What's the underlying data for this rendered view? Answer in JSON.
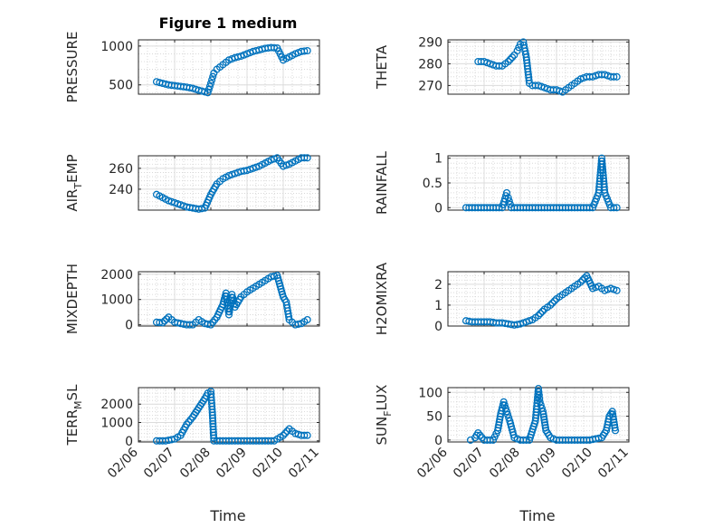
{
  "figure": {
    "title": "Figure 1 medium",
    "marker_color": "#0072BD",
    "time_ticks": [
      "02/06",
      "02/07",
      "02/08",
      "02/09",
      "02/10",
      "02/11"
    ],
    "xlabel": "Time"
  },
  "chart_data": [
    {
      "type": "scatter",
      "ylabel": "PRESSURE",
      "ylim": [
        380,
        1080
      ],
      "yticks": [
        500,
        1000
      ],
      "ytick_labels": [
        "500",
        "1000"
      ],
      "xlim": [
        "02/06",
        "02/11"
      ],
      "grid": true,
      "series": [
        {
          "marker": "o-open",
          "x": [
            "02/06 12:00",
            "02/06 16:00",
            "02/06 20:00",
            "02/07 00:00",
            "02/07 04:00",
            "02/07 08:00",
            "02/07 12:00",
            "02/07 16:00",
            "02/07 20:00",
            "02/07 22:00",
            "02/08 00:00",
            "02/08 02:00",
            "02/08 04:00",
            "02/08 08:00",
            "02/08 12:00",
            "02/08 16:00",
            "02/08 20:00",
            "02/09 00:00",
            "02/09 04:00",
            "02/09 08:00",
            "02/09 12:00",
            "02/09 16:00",
            "02/09 20:00",
            "02/10 00:00",
            "02/10 04:00",
            "02/10 08:00",
            "02/10 12:00",
            "02/10 16:00"
          ],
          "y": [
            540,
            520,
            500,
            490,
            480,
            470,
            455,
            430,
            410,
            400,
            520,
            650,
            700,
            760,
            820,
            850,
            870,
            900,
            930,
            950,
            970,
            980,
            975,
            820,
            860,
            900,
            930,
            940
          ]
        }
      ]
    },
    {
      "type": "scatter",
      "ylabel": "THETA",
      "ylim": [
        266,
        291
      ],
      "yticks": [
        270,
        280,
        290
      ],
      "ytick_labels": [
        "270",
        "280",
        "290"
      ],
      "xlim": [
        "02/06",
        "02/11"
      ],
      "grid": true,
      "series": [
        {
          "marker": "o-open",
          "x": [
            "02/06 20:00",
            "02/07 00:00",
            "02/07 04:00",
            "02/07 08:00",
            "02/07 12:00",
            "02/07 16:00",
            "02/07 20:00",
            "02/07 22:00",
            "02/08 00:00",
            "02/08 02:00",
            "02/08 04:00",
            "02/08 06:00",
            "02/08 08:00",
            "02/08 12:00",
            "02/08 16:00",
            "02/08 20:00",
            "02/09 00:00",
            "02/09 04:00",
            "02/09 08:00",
            "02/09 12:00",
            "02/09 16:00",
            "02/09 20:00",
            "02/10 00:00",
            "02/10 04:00",
            "02/10 08:00",
            "02/10 12:00",
            "02/10 16:00"
          ],
          "y": [
            281,
            281,
            280,
            279,
            279,
            281,
            284,
            286,
            289,
            290,
            283,
            271,
            270,
            270,
            269,
            268,
            268,
            267,
            269,
            271,
            273,
            274,
            274,
            275,
            275,
            274,
            274
          ]
        }
      ]
    },
    {
      "type": "scatter",
      "ylabel": "AIR_TEMP",
      "ylim": [
        220,
        272
      ],
      "yticks": [
        240,
        260
      ],
      "ytick_labels": [
        "240",
        "260"
      ],
      "xlim": [
        "02/06",
        "02/11"
      ],
      "grid": true,
      "series": [
        {
          "marker": "o-open",
          "x": [
            "02/06 12:00",
            "02/06 16:00",
            "02/06 20:00",
            "02/07 00:00",
            "02/07 04:00",
            "02/07 08:00",
            "02/07 12:00",
            "02/07 16:00",
            "02/07 20:00",
            "02/08 00:00",
            "02/08 04:00",
            "02/08 08:00",
            "02/08 12:00",
            "02/08 16:00",
            "02/08 20:00",
            "02/09 00:00",
            "02/09 04:00",
            "02/09 08:00",
            "02/09 12:00",
            "02/09 16:00",
            "02/09 20:00",
            "02/10 00:00",
            "02/10 04:00",
            "02/10 08:00",
            "02/10 12:00",
            "02/10 16:00"
          ],
          "y": [
            235,
            232,
            229,
            227,
            225,
            223,
            222,
            221,
            222,
            235,
            245,
            250,
            253,
            255,
            257,
            258,
            260,
            262,
            265,
            268,
            270,
            262,
            264,
            267,
            270,
            270
          ]
        }
      ]
    },
    {
      "type": "scatter",
      "ylabel": "RAINFALL",
      "ylim": [
        -0.05,
        1.05
      ],
      "yticks": [
        0,
        0.5,
        1
      ],
      "ytick_labels": [
        "0",
        "0.5",
        "1"
      ],
      "xlim": [
        "02/06",
        "02/11"
      ],
      "grid": true,
      "series": [
        {
          "marker": "o-open",
          "x": [
            "02/06 12:00",
            "02/06 18:00",
            "02/07 00:00",
            "02/07 06:00",
            "02/07 12:00",
            "02/07 15:00",
            "02/07 16:00",
            "02/07 18:00",
            "02/08 00:00",
            "02/08 06:00",
            "02/08 12:00",
            "02/08 18:00",
            "02/09 00:00",
            "02/09 06:00",
            "02/09 12:00",
            "02/09 18:00",
            "02/10 00:00",
            "02/10 04:00",
            "02/10 06:00",
            "02/10 08:00",
            "02/10 12:00",
            "02/10 16:00"
          ],
          "y": [
            0,
            0,
            0,
            0,
            0,
            0.3,
            0.2,
            0,
            0,
            0,
            0,
            0,
            0,
            0,
            0,
            0,
            0,
            0.3,
            1.0,
            0.3,
            0,
            0
          ]
        }
      ]
    },
    {
      "type": "scatter",
      "ylabel": "MIXDEPTH",
      "ylim": [
        -50,
        2100
      ],
      "yticks": [
        0,
        1000,
        2000
      ],
      "ytick_labels": [
        "0",
        "1000",
        "2000"
      ],
      "xlim": [
        "02/06",
        "02/11"
      ],
      "grid": true,
      "series": [
        {
          "marker": "o-open",
          "x": [
            "02/06 12:00",
            "02/06 16:00",
            "02/06 20:00",
            "02/07 00:00",
            "02/07 04:00",
            "02/07 08:00",
            "02/07 12:00",
            "02/07 16:00",
            "02/07 20:00",
            "02/08 00:00",
            "02/08 04:00",
            "02/08 08:00",
            "02/08 10:00",
            "02/08 12:00",
            "02/08 14:00",
            "02/08 16:00",
            "02/08 18:00",
            "02/08 20:00",
            "02/09 00:00",
            "02/09 04:00",
            "02/09 08:00",
            "02/09 12:00",
            "02/09 16:00",
            "02/09 20:00",
            "02/10 00:00",
            "02/10 02:00",
            "02/10 04:00",
            "02/10 08:00",
            "02/10 12:00",
            "02/10 16:00"
          ],
          "y": [
            100,
            80,
            300,
            100,
            50,
            0,
            0,
            200,
            50,
            0,
            300,
            800,
            1250,
            400,
            1200,
            700,
            900,
            1100,
            1300,
            1450,
            1600,
            1750,
            1900,
            1950,
            1100,
            900,
            200,
            0,
            50,
            200
          ]
        }
      ]
    },
    {
      "type": "scatter",
      "ylabel": "H2OMIXRA",
      "ylim": [
        0,
        2.6
      ],
      "yticks": [
        0,
        1,
        2
      ],
      "ytick_labels": [
        "0",
        "1",
        "2"
      ],
      "xlim": [
        "02/06",
        "02/11"
      ],
      "grid": true,
      "series": [
        {
          "marker": "o-open",
          "x": [
            "02/06 12:00",
            "02/06 16:00",
            "02/06 20:00",
            "02/07 00:00",
            "02/07 04:00",
            "02/07 08:00",
            "02/07 12:00",
            "02/07 16:00",
            "02/07 20:00",
            "02/08 00:00",
            "02/08 04:00",
            "02/08 08:00",
            "02/08 12:00",
            "02/08 16:00",
            "02/08 20:00",
            "02/09 00:00",
            "02/09 04:00",
            "02/09 08:00",
            "02/09 12:00",
            "02/09 16:00",
            "02/09 20:00",
            "02/10 00:00",
            "02/10 04:00",
            "02/10 08:00",
            "02/10 12:00",
            "02/10 16:00"
          ],
          "y": [
            0.25,
            0.2,
            0.2,
            0.2,
            0.2,
            0.15,
            0.15,
            0.1,
            0.05,
            0.1,
            0.2,
            0.3,
            0.5,
            0.8,
            1.0,
            1.3,
            1.5,
            1.7,
            1.9,
            2.1,
            2.4,
            1.8,
            1.9,
            1.7,
            1.8,
            1.7
          ]
        }
      ]
    },
    {
      "type": "scatter",
      "ylabel": "TERR_MSL",
      "ylim": [
        -60,
        2900
      ],
      "yticks": [
        0,
        1000,
        2000
      ],
      "ytick_labels": [
        "0",
        "1000",
        "2000"
      ],
      "xlim": [
        "02/06",
        "02/11"
      ],
      "grid": true,
      "series": [
        {
          "marker": "o-open",
          "x": [
            "02/06 12:00",
            "02/06 18:00",
            "02/07 00:00",
            "02/07 04:00",
            "02/07 08:00",
            "02/07 12:00",
            "02/07 16:00",
            "02/07 20:00",
            "02/07 22:00",
            "02/08 00:00",
            "02/08 01:00",
            "02/08 02:00",
            "02/08 06:00",
            "02/08 12:00",
            "02/08 18:00",
            "02/09 00:00",
            "02/09 06:00",
            "02/09 12:00",
            "02/09 18:00",
            "02/10 00:00",
            "02/10 04:00",
            "02/10 08:00",
            "02/10 12:00",
            "02/10 16:00"
          ],
          "y": [
            0,
            0,
            100,
            300,
            900,
            1300,
            1800,
            2300,
            2600,
            2700,
            1550,
            0,
            0,
            0,
            0,
            0,
            0,
            0,
            0,
            300,
            650,
            400,
            300,
            300
          ]
        }
      ]
    },
    {
      "type": "scatter",
      "ylabel": "SUN_FLUX",
      "ylim": [
        -4,
        110
      ],
      "yticks": [
        0,
        50,
        100
      ],
      "ytick_labels": [
        "0",
        "50",
        "100"
      ],
      "xlim": [
        "02/06",
        "02/11"
      ],
      "grid": true,
      "series": [
        {
          "marker": "o-open",
          "x": [
            "02/06 15:00",
            "02/06 18:00",
            "02/06 20:00",
            "02/07 00:00",
            "02/07 06:00",
            "02/07 09:00",
            "02/07 11:00",
            "02/07 13:00",
            "02/07 15:00",
            "02/07 17:00",
            "02/07 20:00",
            "02/08 00:00",
            "02/08 06:00",
            "02/08 10:00",
            "02/08 12:00",
            "02/08 13:00",
            "02/08 15:00",
            "02/08 17:00",
            "02/08 20:00",
            "02/09 00:00",
            "02/09 06:00",
            "02/09 12:00",
            "02/09 18:00",
            "02/09 22:00",
            "02/10 06:00",
            "02/10 09:00",
            "02/10 11:00",
            "02/10 13:00",
            "02/10 15:00"
          ],
          "y": [
            0,
            5,
            15,
            0,
            0,
            20,
            55,
            80,
            60,
            40,
            5,
            0,
            0,
            40,
            108,
            80,
            60,
            20,
            5,
            0,
            0,
            0,
            0,
            0,
            5,
            20,
            50,
            60,
            20
          ]
        }
      ]
    }
  ]
}
